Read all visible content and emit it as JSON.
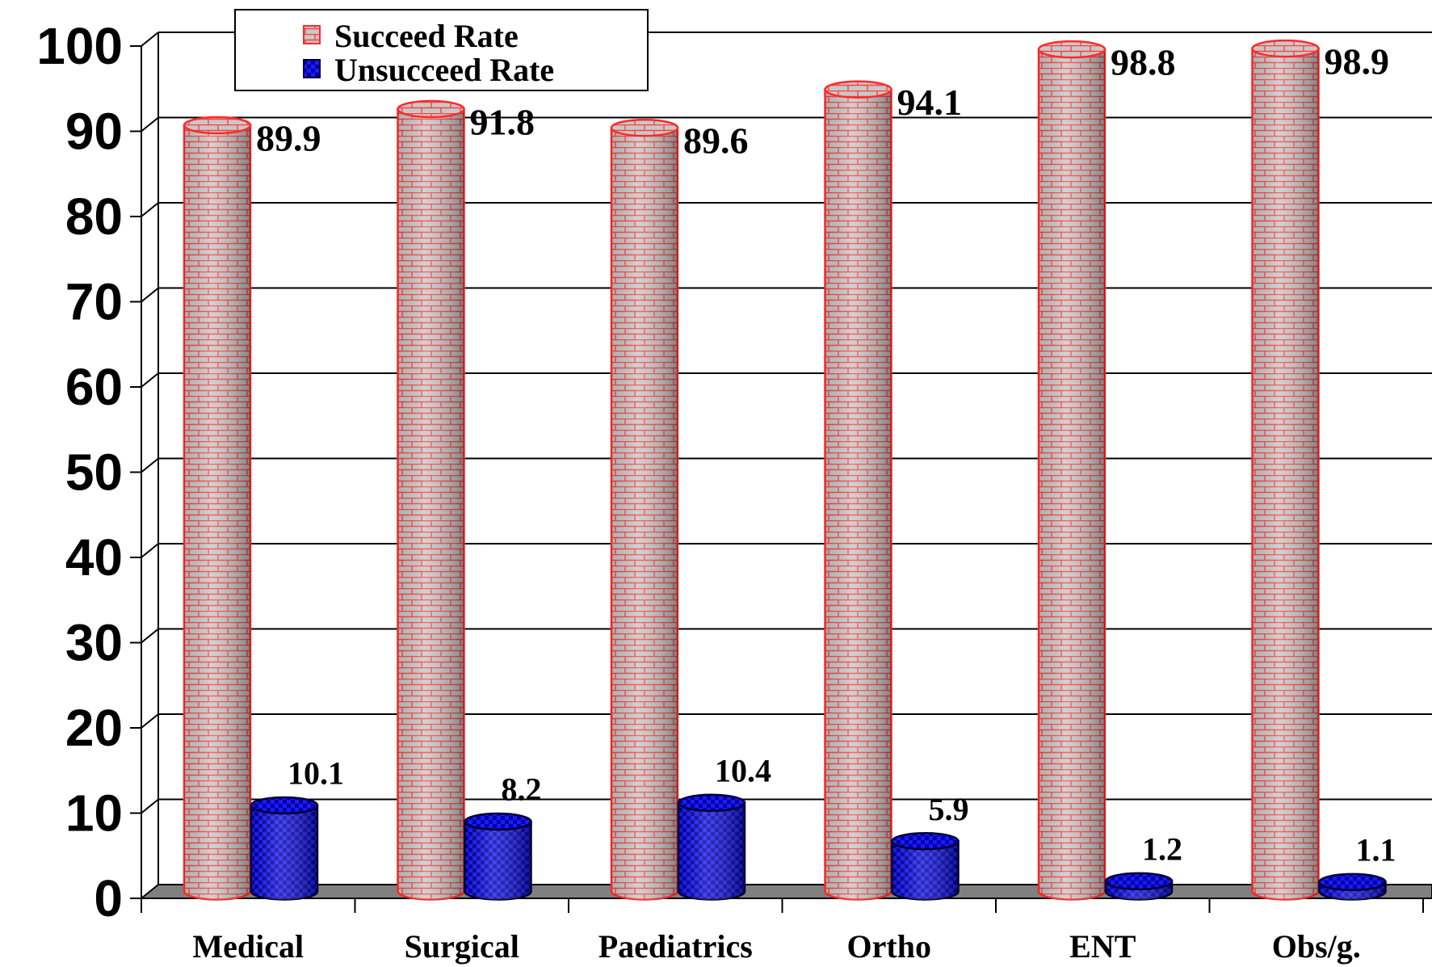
{
  "chart_data": {
    "type": "bar",
    "title": "",
    "xlabel": "",
    "ylabel": "",
    "categories": [
      "Medical",
      "Surgical",
      "Paediatrics",
      "Ortho",
      "ENT",
      "Obs/g."
    ],
    "series": [
      {
        "name": "Succeed Rate",
        "values": [
          89.9,
          91.8,
          89.6,
          94.1,
          98.8,
          98.9
        ],
        "labels": [
          "89.9",
          "91.8",
          "89.6",
          "94.1",
          "98.8",
          "98.9"
        ],
        "color": "#ff2a2a",
        "fill": "#c8c8c8",
        "pattern": "brick"
      },
      {
        "name": "Unsucceed Rate",
        "values": [
          10.1,
          8.2,
          10.4,
          5.9,
          1.2,
          1.1
        ],
        "labels": [
          "10.1",
          "8.2",
          "10.4",
          "5.9",
          "1.2",
          "1.1"
        ],
        "color": "#000033",
        "fill": "#1a1aff",
        "pattern": "checker"
      }
    ],
    "ylim": [
      0,
      100
    ],
    "yticks": [
      "0",
      "10",
      "20",
      "30",
      "40",
      "50",
      "60",
      "70",
      "80",
      "90",
      "100"
    ],
    "grid": true,
    "legend": "top-left",
    "style": "3d-cylinder",
    "colors": {
      "floor": "#808080",
      "gridline": "#000000"
    }
  }
}
